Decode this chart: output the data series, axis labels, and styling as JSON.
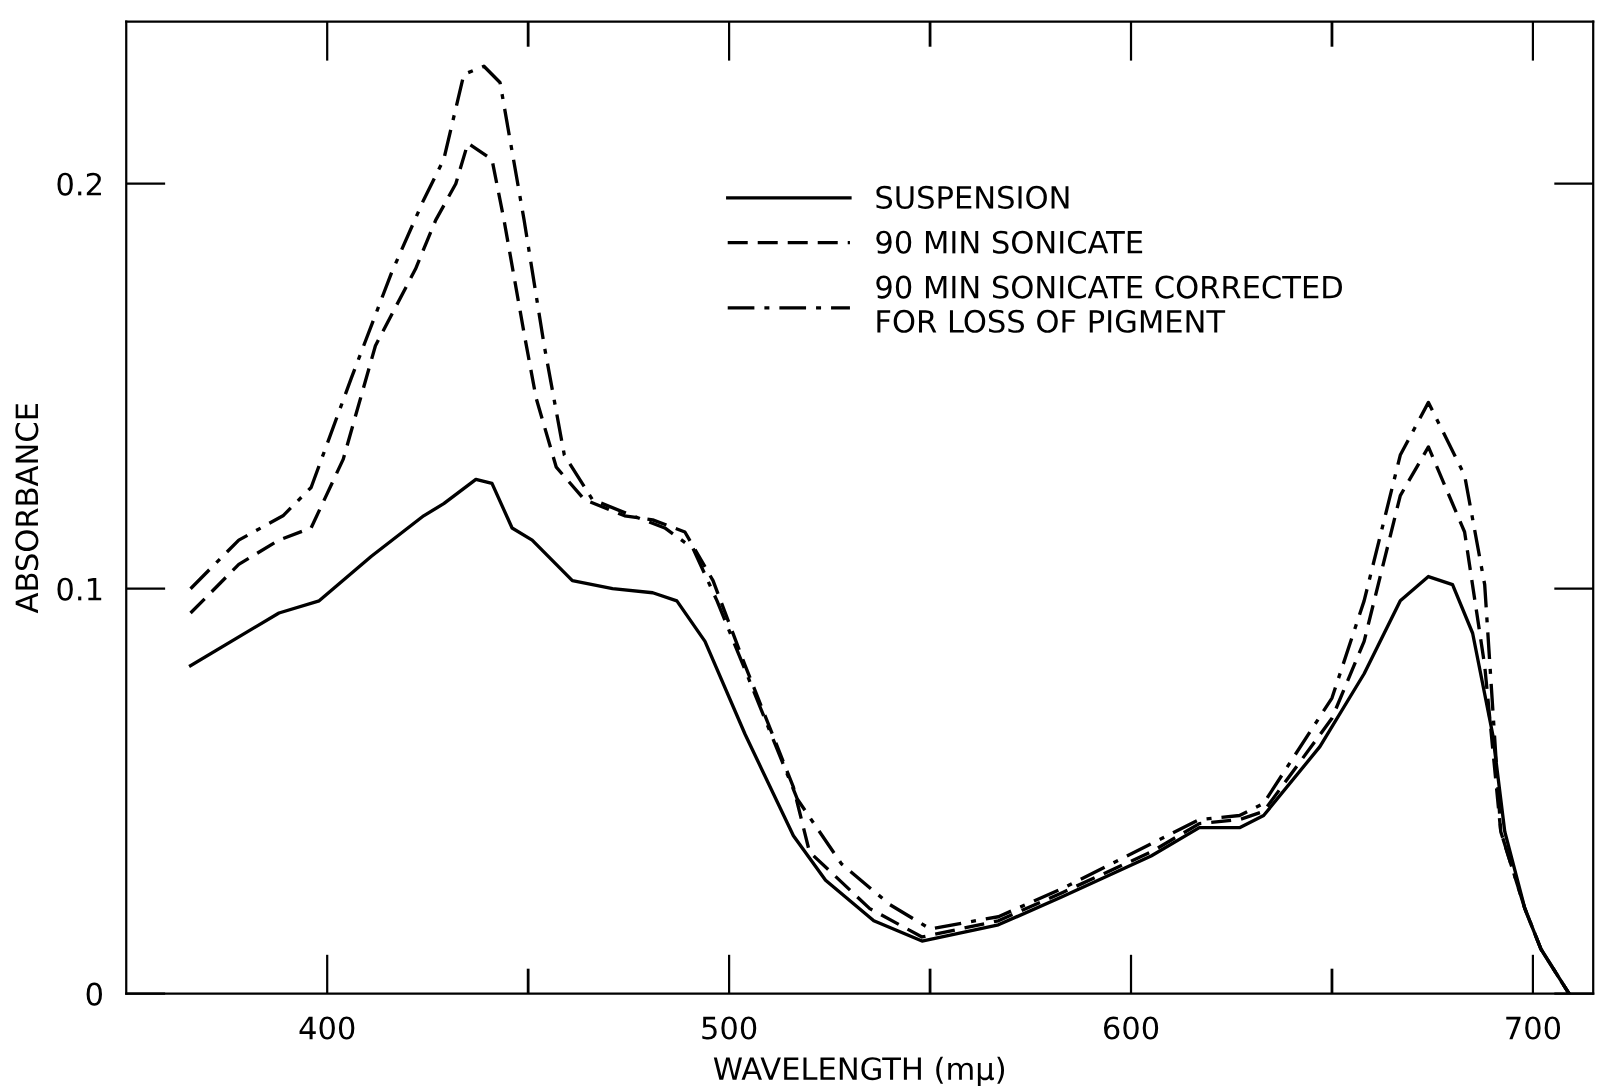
{
  "chart_data": {
    "type": "line",
    "xlabel": "WAVELENGTH (mμ)",
    "ylabel": "ABSORBANCE",
    "xlim": [
      350,
      715
    ],
    "ylim": [
      0,
      0.24
    ],
    "xticks": [
      400,
      {
        "value": 450,
        "label": null
      },
      500,
      {
        "value": 550,
        "label": null
      },
      600,
      {
        "value": 650,
        "label": null
      },
      700
    ],
    "yticks": [
      0,
      0.1,
      0.2
    ],
    "legend": "top",
    "marker": "none",
    "series": [
      {
        "name": "SUSPENSION",
        "color": "#000000",
        "line_style": "solid",
        "x": [
          366,
          388,
          398,
          411,
          424,
          429,
          437,
          441,
          446,
          451,
          461,
          471,
          481,
          487,
          494,
          504,
          516,
          524,
          536,
          548,
          567,
          583,
          605,
          617,
          627,
          633,
          647,
          658,
          667,
          674,
          680,
          685,
          690,
          693,
          698,
          702,
          709
        ],
        "values": [
          0.081,
          0.094,
          0.097,
          0.108,
          0.118,
          0.121,
          0.127,
          0.126,
          0.115,
          0.112,
          0.102,
          0.1,
          0.099,
          0.097,
          0.087,
          0.064,
          0.039,
          0.028,
          0.018,
          0.013,
          0.017,
          0.024,
          0.034,
          0.041,
          0.041,
          0.044,
          0.061,
          0.079,
          0.097,
          0.103,
          0.101,
          0.089,
          0.064,
          0.04,
          0.021,
          0.011,
          0.0
        ]
      },
      {
        "name": "90 MIN SONICATE",
        "color": "#000000",
        "line_style": "dashed",
        "x": [
          366,
          378,
          388,
          396,
          404,
          412,
          422,
          427,
          432,
          435,
          441,
          444,
          449,
          452,
          457,
          464,
          474,
          481,
          489,
          496,
          504,
          516,
          520,
          535,
          548,
          567,
          583,
          605,
          617,
          627,
          633,
          650,
          658,
          667,
          674,
          683,
          688,
          692,
          698,
          702,
          709
        ],
        "values": [
          0.094,
          0.106,
          0.112,
          0.115,
          0.132,
          0.16,
          0.179,
          0.191,
          0.2,
          0.21,
          0.206,
          0.191,
          0.163,
          0.147,
          0.13,
          0.122,
          0.118,
          0.117,
          0.114,
          0.102,
          0.081,
          0.051,
          0.035,
          0.021,
          0.014,
          0.018,
          0.025,
          0.035,
          0.042,
          0.043,
          0.045,
          0.068,
          0.087,
          0.123,
          0.135,
          0.114,
          0.081,
          0.04,
          0.021,
          0.011,
          0.0
        ]
      },
      {
        "name": "90 MIN SONICATE CORRECTED\nFOR LOSS OF PIGMENT",
        "color": "#000000",
        "line_style": "dashdot",
        "x": [
          366,
          378,
          389,
          396,
          406,
          416,
          424,
          429,
          434,
          439,
          443,
          449,
          454,
          459,
          466,
          476,
          484,
          491,
          497,
          506,
          517,
          528,
          540,
          550,
          567,
          583,
          605,
          617,
          627,
          633,
          650,
          658,
          667,
          674,
          683,
          688,
          692,
          698,
          702,
          709
        ],
        "values": [
          0.1,
          0.112,
          0.118,
          0.125,
          0.152,
          0.178,
          0.196,
          0.206,
          0.227,
          0.229,
          0.225,
          0.191,
          0.16,
          0.133,
          0.122,
          0.118,
          0.115,
          0.11,
          0.097,
          0.075,
          0.048,
          0.032,
          0.022,
          0.016,
          0.019,
          0.026,
          0.037,
          0.043,
          0.044,
          0.047,
          0.073,
          0.097,
          0.133,
          0.146,
          0.128,
          0.101,
          0.04,
          0.021,
          0.011,
          0.0
        ]
      }
    ]
  }
}
